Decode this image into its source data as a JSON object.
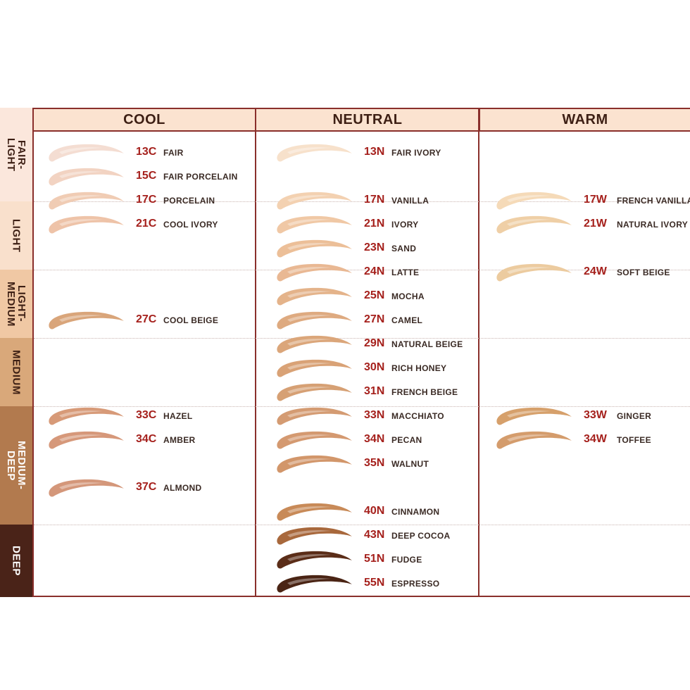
{
  "columns": [
    {
      "label": "COOL"
    },
    {
      "label": "NEUTRAL"
    },
    {
      "label": "WARM"
    }
  ],
  "bands": [
    {
      "label": "FAIR-\nLIGHT",
      "bg": "#fbe7dc",
      "fg": "#3d1f14"
    },
    {
      "label": "LIGHT",
      "bg": "#f9e0cc",
      "fg": "#3d1f14"
    },
    {
      "label": "LIGHT-\nMEDIUM",
      "bg": "#f0c8a4",
      "fg": "#3d1f14"
    },
    {
      "label": "MEDIUM",
      "bg": "#d9a87a",
      "fg": "#3d1f14"
    },
    {
      "label": "MEDIUM-\nDEEP",
      "bg": "#b27a4e",
      "fg": "#ffffff"
    },
    {
      "label": "DEEP",
      "bg": "#4a2318",
      "fg": "#ffffff"
    }
  ],
  "shades": {
    "cool": [
      {
        "code": "13C",
        "name": "FAIR",
        "color": "#f4ddd2"
      },
      {
        "code": "15C",
        "name": "FAIR PORCELAIN",
        "color": "#f2d3c2"
      },
      {
        "code": "17C",
        "name": "PORCELAIN",
        "color": "#f0ccb4"
      },
      {
        "code": "21C",
        "name": "COOL IVORY",
        "color": "#eec3a8"
      },
      {
        "code": "27C",
        "name": "COOL BEIGE",
        "color": "#d9a57a"
      },
      {
        "code": "33C",
        "name": "HAZEL",
        "color": "#d79a78"
      },
      {
        "code": "34C",
        "name": "AMBER",
        "color": "#d6987a"
      },
      {
        "code": "37C",
        "name": "ALMOND",
        "color": "#d4977a"
      }
    ],
    "neutral": [
      {
        "code": "13N",
        "name": "FAIR IVORY",
        "color": "#f7e1cb"
      },
      {
        "code": "17N",
        "name": "VANILLA",
        "color": "#f3d1b1"
      },
      {
        "code": "21N",
        "name": "IVORY",
        "color": "#f0c8a5"
      },
      {
        "code": "23N",
        "name": "SAND",
        "color": "#ecbf98"
      },
      {
        "code": "24N",
        "name": "LATTE",
        "color": "#e9b893"
      },
      {
        "code": "25N",
        "name": "MOCHA",
        "color": "#e4b38a"
      },
      {
        "code": "27N",
        "name": "CAMEL",
        "color": "#deaa80"
      },
      {
        "code": "29N",
        "name": "NATURAL BEIGE",
        "color": "#dba67a"
      },
      {
        "code": "30N",
        "name": "RICH HONEY",
        "color": "#d9a276"
      },
      {
        "code": "31N",
        "name": "FRENCH BEIGE",
        "color": "#d6a074"
      },
      {
        "code": "33N",
        "name": "MACCHIATO",
        "color": "#d49b72"
      },
      {
        "code": "34N",
        "name": "PECAN",
        "color": "#d49970"
      },
      {
        "code": "35N",
        "name": "WALNUT",
        "color": "#d2966a"
      },
      {
        "code": "40N",
        "name": "CINNAMON",
        "color": "#c88a58"
      },
      {
        "code": "43N",
        "name": "DEEP COCOA",
        "color": "#a8683c"
      },
      {
        "code": "51N",
        "name": "FUDGE",
        "color": "#5b2d18"
      },
      {
        "code": "55N",
        "name": "ESPRESSO",
        "color": "#4a2414"
      }
    ],
    "warm": [
      {
        "code": "17W",
        "name": "FRENCH VANILLA",
        "color": "#f5dab8"
      },
      {
        "code": "21W",
        "name": "NATURAL IVORY",
        "color": "#efcfa6"
      },
      {
        "code": "24W",
        "name": "SOFT BEIGE",
        "color": "#eccb9f"
      },
      {
        "code": "33W",
        "name": "GINGER",
        "color": "#d6a06b"
      },
      {
        "code": "34W",
        "name": "TOFFEE",
        "color": "#d49c6c"
      }
    ]
  }
}
